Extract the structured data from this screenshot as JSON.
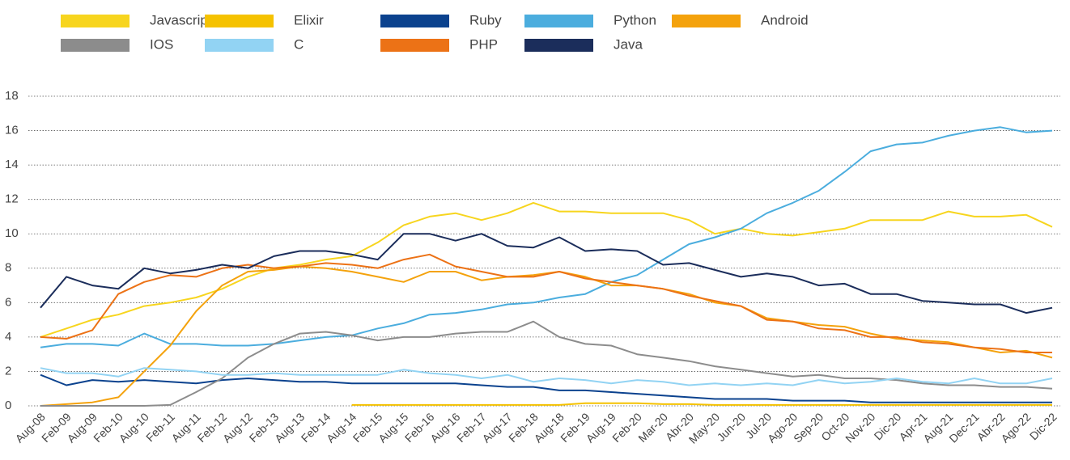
{
  "chart_data": {
    "type": "line",
    "categories": [
      "Aug-08",
      "Feb-09",
      "Aug-09",
      "Feb-10",
      "Aug-10",
      "Feb-11",
      "Aug-11",
      "Feb-12",
      "Aug-12",
      "Feb-13",
      "Aug-13",
      "Feb-14",
      "Aug-14",
      "Feb-15",
      "Aug-15",
      "Feb-16",
      "Aug-16",
      "Feb-17",
      "Aug-17",
      "Feb-18",
      "Aug-18",
      "Feb-19",
      "Aug-19",
      "Feb-20",
      "Mar-20",
      "Abr-20",
      "May-20",
      "Jun-20",
      "Jul-20",
      "Ago-20",
      "Sep-20",
      "Oct-20",
      "Nov-20",
      "Dic-20",
      "Apr-21",
      "Aug-21",
      "Dec-21",
      "Abr-22",
      "Ago-22",
      "Dic-22"
    ],
    "series": [
      {
        "name": "Javascript",
        "color": "#f7d51e",
        "values": [
          4,
          4.5,
          5,
          5.3,
          5.8,
          6,
          6.3,
          6.8,
          7.5,
          8,
          8.2,
          8.5,
          8.7,
          9.5,
          10.5,
          11,
          11.2,
          10.8,
          11.2,
          11.8,
          11.3,
          11.3,
          11.2,
          11.2,
          11.2,
          10.8,
          10,
          10.3,
          10,
          9.9,
          10.1,
          10.3,
          10.8,
          10.8,
          10.8,
          11.3,
          11,
          11,
          11.1,
          10.4
        ]
      },
      {
        "name": "Elixir",
        "color": "#f5c200",
        "values": [
          null,
          null,
          null,
          null,
          null,
          null,
          null,
          null,
          null,
          null,
          null,
          null,
          0.05,
          0.05,
          0.05,
          0.05,
          0.05,
          0.05,
          0.05,
          0.05,
          0.05,
          0.15,
          0.15,
          0.15,
          0.1,
          0.1,
          0.05,
          0.05,
          0.05,
          0.05,
          0.05,
          0.05,
          0.05,
          0.05,
          0.05,
          0.05,
          0.05,
          0.05,
          0.05,
          0.05
        ]
      },
      {
        "name": "Ruby",
        "color": "#0b428e",
        "values": [
          1.8,
          1.2,
          1.5,
          1.4,
          1.5,
          1.4,
          1.3,
          1.5,
          1.6,
          1.5,
          1.4,
          1.4,
          1.3,
          1.3,
          1.3,
          1.3,
          1.3,
          1.2,
          1.1,
          1.1,
          0.9,
          0.9,
          0.8,
          0.7,
          0.6,
          0.5,
          0.4,
          0.4,
          0.4,
          0.3,
          0.3,
          0.3,
          0.2,
          0.2,
          0.2,
          0.2,
          0.2,
          0.2,
          0.2,
          0.2
        ]
      },
      {
        "name": "Python",
        "color": "#4badde",
        "values": [
          3.4,
          3.6,
          3.6,
          3.5,
          4.2,
          3.6,
          3.6,
          3.5,
          3.5,
          3.6,
          3.8,
          4,
          4.1,
          4.5,
          4.8,
          5.3,
          5.4,
          5.6,
          5.9,
          6,
          6.3,
          6.5,
          7.2,
          7.6,
          8.5,
          9.4,
          9.8,
          10.3,
          11.2,
          11.8,
          12.5,
          13.6,
          14.8,
          15.2,
          15.3,
          15.7,
          16,
          16.2,
          15.9,
          16
        ]
      },
      {
        "name": "Android",
        "color": "#f4a20c",
        "values": [
          0,
          0.1,
          0.2,
          0.5,
          2,
          3.5,
          5.5,
          7,
          7.8,
          7.9,
          8.1,
          8,
          7.8,
          7.5,
          7.2,
          7.8,
          7.8,
          7.3,
          7.5,
          7.6,
          7.8,
          7.5,
          7,
          7,
          6.8,
          6.5,
          6,
          5.8,
          5.1,
          4.9,
          4.7,
          4.6,
          4.2,
          3.9,
          3.8,
          3.7,
          3.4,
          3.1,
          3.2,
          2.8
        ]
      },
      {
        "name": "IOS",
        "color": "#8c8c8c",
        "values": [
          0,
          0,
          0,
          0,
          0,
          0.05,
          0.8,
          1.6,
          2.8,
          3.6,
          4.2,
          4.3,
          4.1,
          3.8,
          4,
          4,
          4.2,
          4.3,
          4.3,
          4.9,
          4,
          3.6,
          3.5,
          3,
          2.8,
          2.6,
          2.3,
          2.1,
          1.9,
          1.7,
          1.8,
          1.6,
          1.6,
          1.5,
          1.3,
          1.2,
          1.2,
          1.1,
          1.1,
          1
        ]
      },
      {
        "name": "C",
        "color": "#92d3f3",
        "values": [
          2.2,
          1.9,
          1.9,
          1.7,
          2.2,
          2.1,
          2,
          1.8,
          1.8,
          1.9,
          1.8,
          1.8,
          1.8,
          1.8,
          2.1,
          1.9,
          1.8,
          1.6,
          1.8,
          1.4,
          1.6,
          1.5,
          1.3,
          1.5,
          1.4,
          1.2,
          1.3,
          1.2,
          1.3,
          1.2,
          1.5,
          1.3,
          1.4,
          1.6,
          1.4,
          1.3,
          1.6,
          1.3,
          1.3,
          1.6
        ]
      },
      {
        "name": "PHP",
        "color": "#ec7216",
        "values": [
          4,
          3.9,
          4.4,
          6.5,
          7.2,
          7.6,
          7.5,
          8,
          8.2,
          8,
          8.1,
          8.3,
          8.2,
          8,
          8.5,
          8.8,
          8.1,
          7.8,
          7.5,
          7.5,
          7.8,
          7.4,
          7.2,
          7,
          6.8,
          6.4,
          6.1,
          5.8,
          5,
          4.9,
          4.5,
          4.4,
          4,
          4,
          3.7,
          3.6,
          3.4,
          3.3,
          3.1,
          3.1
        ]
      },
      {
        "name": "Java",
        "color": "#1b2d5b",
        "values": [
          5.7,
          7.5,
          7,
          6.8,
          8,
          7.7,
          7.9,
          8.2,
          8,
          8.7,
          9,
          9,
          8.8,
          8.5,
          10,
          10,
          9.6,
          10,
          9.3,
          9.2,
          9.8,
          9,
          9.1,
          9,
          8.2,
          8.3,
          7.9,
          7.5,
          7.7,
          7.5,
          7,
          7.1,
          6.5,
          6.5,
          6.1,
          6,
          5.9,
          5.9,
          5.4,
          5.7
        ]
      }
    ],
    "ylim": [
      0,
      18
    ],
    "yticks": [
      0,
      2,
      4,
      6,
      8,
      10,
      12,
      14,
      16,
      18
    ],
    "grid": true
  }
}
